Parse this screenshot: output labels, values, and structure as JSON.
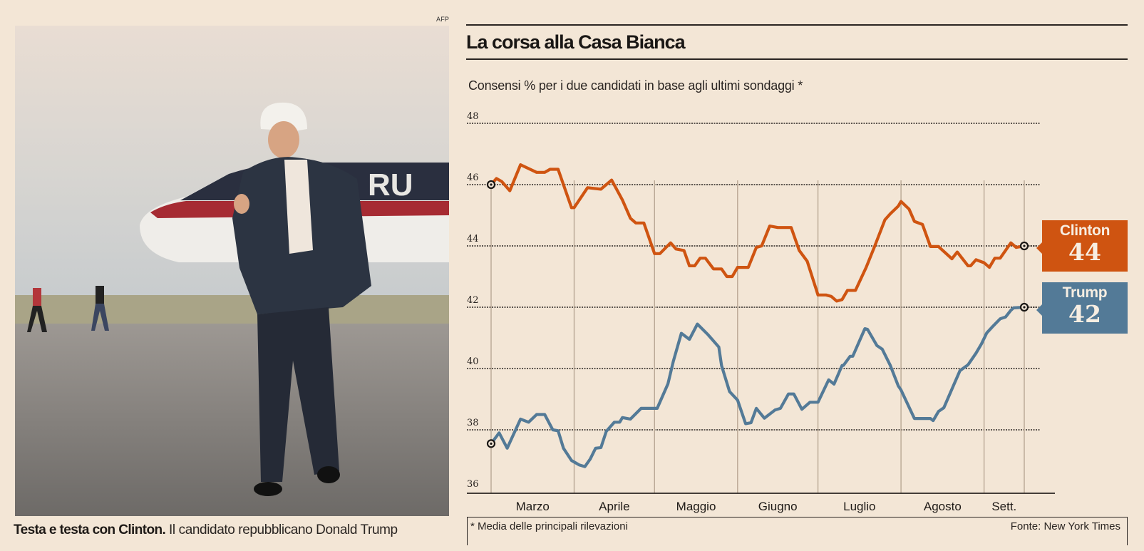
{
  "photo": {
    "credit": "AFP",
    "alt": "Donald Trump giving a thumbs up while walking on an airport tarmac in front of his plane",
    "caption_bold": "Testa e testa con Clinton.",
    "caption_rest": " Il candidato repubblicano Donald Trump"
  },
  "header": {
    "title": "La corsa alla Casa Bianca"
  },
  "chart_data": {
    "type": "line",
    "title": "La corsa alla Casa Bianca",
    "subtitle": "Consensi % per i due candidati in base agli ultimi sondaggi *",
    "xlabel": "",
    "ylabel": "Consensi %",
    "ylim": [
      36,
      48
    ],
    "yticks": [
      36,
      38,
      40,
      42,
      44,
      46,
      48
    ],
    "grid": true,
    "x_unit": "days since 1 March",
    "xlim": [
      0,
      199
    ],
    "month_boundaries": [
      0,
      31,
      61,
      92,
      122,
      153,
      184,
      199
    ],
    "x_categories": [
      "Marzo",
      "Aprile",
      "Maggio",
      "Giugno",
      "Luglio",
      "Agosto",
      "Sett."
    ],
    "series": [
      {
        "name": "Clinton",
        "color": "#cf5411",
        "final_value": 44,
        "points": [
          [
            0,
            46.0
          ],
          [
            2,
            46.2
          ],
          [
            4,
            46.1
          ],
          [
            7,
            45.8
          ],
          [
            11,
            46.65
          ],
          [
            17,
            46.4
          ],
          [
            20,
            46.4
          ],
          [
            22,
            46.5
          ],
          [
            25,
            46.5
          ],
          [
            30,
            45.25
          ],
          [
            31,
            45.25
          ],
          [
            36,
            45.9
          ],
          [
            41,
            45.85
          ],
          [
            45,
            46.15
          ],
          [
            49,
            45.5
          ],
          [
            52,
            44.9
          ],
          [
            54,
            44.75
          ],
          [
            57,
            44.75
          ],
          [
            61,
            43.75
          ],
          [
            63,
            43.75
          ],
          [
            67,
            44.1
          ],
          [
            69,
            43.9
          ],
          [
            72,
            43.85
          ],
          [
            74,
            43.35
          ],
          [
            76,
            43.35
          ],
          [
            78,
            43.6
          ],
          [
            80,
            43.6
          ],
          [
            83,
            43.25
          ],
          [
            86,
            43.25
          ],
          [
            88,
            43.0
          ],
          [
            90,
            43.0
          ],
          [
            92,
            43.3
          ],
          [
            96,
            43.3
          ],
          [
            99,
            43.95
          ],
          [
            101,
            44.0
          ],
          [
            104,
            44.65
          ],
          [
            107,
            44.6
          ],
          [
            112,
            44.6
          ],
          [
            115,
            43.85
          ],
          [
            118,
            43.5
          ],
          [
            122,
            42.4
          ],
          [
            125,
            42.4
          ],
          [
            127,
            42.35
          ],
          [
            129,
            42.2
          ],
          [
            131,
            42.25
          ],
          [
            133,
            42.55
          ],
          [
            136,
            42.55
          ],
          [
            140,
            43.3
          ],
          [
            143,
            43.95
          ],
          [
            147,
            44.85
          ],
          [
            149,
            45.05
          ],
          [
            152,
            45.3
          ],
          [
            153,
            45.45
          ],
          [
            156,
            45.2
          ],
          [
            158,
            44.8
          ],
          [
            161,
            44.7
          ],
          [
            164,
            43.98
          ],
          [
            167,
            43.98
          ],
          [
            172,
            43.58
          ],
          [
            174,
            43.8
          ],
          [
            178,
            43.35
          ],
          [
            179,
            43.35
          ],
          [
            181,
            43.55
          ],
          [
            184,
            43.45
          ],
          [
            186,
            43.3
          ],
          [
            188,
            43.6
          ],
          [
            190,
            43.6
          ],
          [
            194,
            44.1
          ],
          [
            196,
            43.95
          ],
          [
            199,
            44.0
          ]
        ]
      },
      {
        "name": "Trump",
        "color": "#537a97",
        "final_value": 42,
        "points": [
          [
            0,
            37.55
          ],
          [
            3,
            37.9
          ],
          [
            6,
            37.4
          ],
          [
            11,
            38.35
          ],
          [
            14,
            38.25
          ],
          [
            17,
            38.5
          ],
          [
            20,
            38.5
          ],
          [
            23,
            38.0
          ],
          [
            25,
            37.97
          ],
          [
            27,
            37.4
          ],
          [
            30,
            37.0
          ],
          [
            33,
            36.85
          ],
          [
            35,
            36.8
          ],
          [
            37,
            37.05
          ],
          [
            39,
            37.4
          ],
          [
            41,
            37.42
          ],
          [
            43,
            37.95
          ],
          [
            46,
            38.25
          ],
          [
            48,
            38.25
          ],
          [
            49,
            38.4
          ],
          [
            52,
            38.35
          ],
          [
            56,
            38.7
          ],
          [
            62,
            38.7
          ],
          [
            66,
            39.5
          ],
          [
            68,
            40.23
          ],
          [
            71,
            41.15
          ],
          [
            74,
            40.95
          ],
          [
            77,
            41.45
          ],
          [
            81,
            41.1
          ],
          [
            85,
            40.7
          ],
          [
            86,
            40.1
          ],
          [
            89,
            39.25
          ],
          [
            92,
            38.97
          ],
          [
            95,
            38.2
          ],
          [
            97,
            38.23
          ],
          [
            99,
            38.7
          ],
          [
            102,
            38.38
          ],
          [
            106,
            38.65
          ],
          [
            108,
            38.7
          ],
          [
            111,
            39.17
          ],
          [
            113,
            39.17
          ],
          [
            116,
            38.67
          ],
          [
            119,
            38.9
          ],
          [
            122,
            38.9
          ],
          [
            126,
            39.63
          ],
          [
            128,
            39.49
          ],
          [
            131,
            40.1
          ],
          [
            131.5,
            40.1
          ],
          [
            134,
            40.4
          ],
          [
            135,
            40.4
          ],
          [
            138,
            41.0
          ],
          [
            139,
            41.2
          ],
          [
            139.5,
            41.3
          ],
          [
            140.5,
            41.28
          ],
          [
            144,
            40.75
          ],
          [
            146,
            40.63
          ],
          [
            149,
            40.1
          ],
          [
            152,
            39.43
          ],
          [
            153,
            39.3
          ],
          [
            158,
            38.37
          ],
          [
            164,
            38.37
          ],
          [
            165,
            38.3
          ],
          [
            167,
            38.6
          ],
          [
            169,
            38.72
          ],
          [
            173,
            39.53
          ],
          [
            175,
            39.93
          ],
          [
            178,
            40.12
          ],
          [
            181,
            40.5
          ],
          [
            183,
            40.8
          ],
          [
            185,
            41.16
          ],
          [
            187,
            41.35
          ],
          [
            190,
            41.62
          ],
          [
            192,
            41.68
          ],
          [
            194,
            41.9
          ],
          [
            195,
            41.98
          ],
          [
            199,
            42.0
          ]
        ]
      }
    ],
    "annotations": [
      {
        "label": "Clinton",
        "value": "44"
      },
      {
        "label": "Trump",
        "value": "42"
      }
    ],
    "footnote": "* Media delle principali rilevazioni",
    "source": "Fonte: New York Times"
  }
}
